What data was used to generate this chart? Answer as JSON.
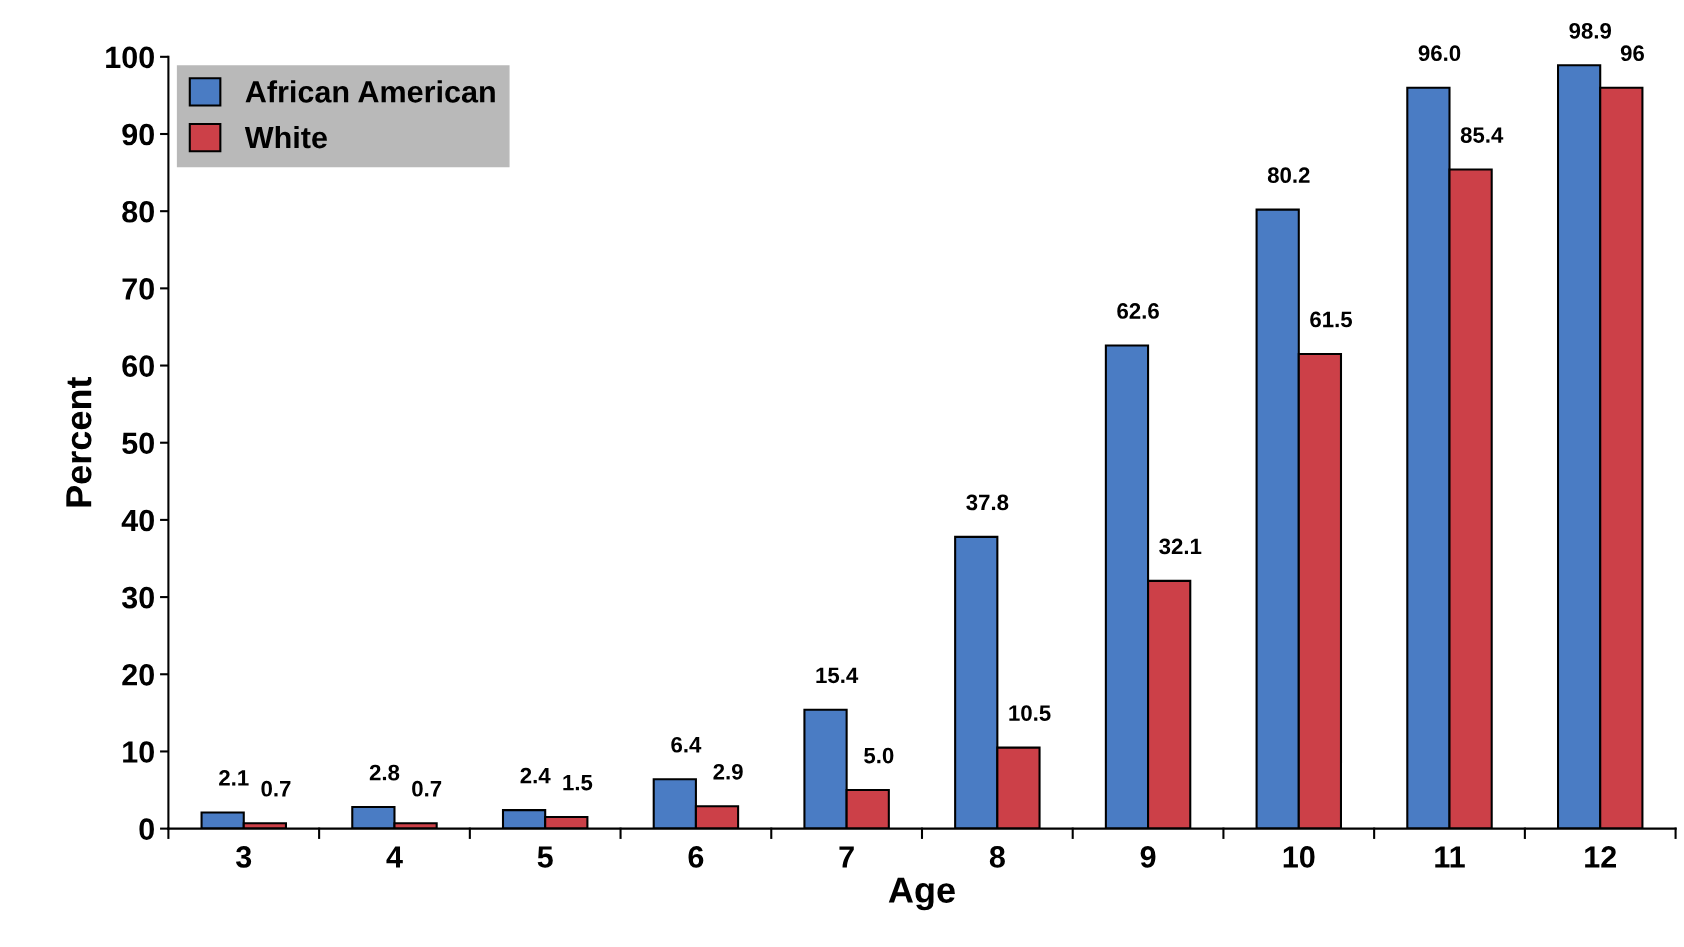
{
  "chart_data": {
    "type": "bar",
    "xlabel": "Age",
    "ylabel": "Percent",
    "categories": [
      "3",
      "4",
      "5",
      "6",
      "7",
      "8",
      "9",
      "10",
      "11",
      "12"
    ],
    "series": [
      {
        "name": "African American",
        "color": "#4a7cc4",
        "values": [
          2.1,
          2.8,
          2.4,
          6.4,
          15.4,
          37.8,
          62.6,
          80.2,
          96.0,
          98.9
        ],
        "value_labels": [
          "2.1",
          "2.8",
          "2.4",
          "6.4",
          "15.4",
          "37.8",
          "62.6",
          "80.2",
          "96.0",
          "98.9"
        ]
      },
      {
        "name": "White",
        "color": "#cc4048",
        "values": [
          0.7,
          0.7,
          1.5,
          2.9,
          5.0,
          10.5,
          32.1,
          61.5,
          85.4,
          96
        ],
        "value_labels": [
          "0.7",
          "0.7",
          "1.5",
          "2.9",
          "5.0",
          "10.5",
          "32.1",
          "61.5",
          "85.4",
          "96"
        ]
      }
    ],
    "ylim": [
      0,
      100
    ],
    "yticks": [
      0,
      10,
      20,
      30,
      40,
      50,
      60,
      70,
      80,
      90,
      100
    ],
    "grid": false,
    "legend": "top left"
  }
}
